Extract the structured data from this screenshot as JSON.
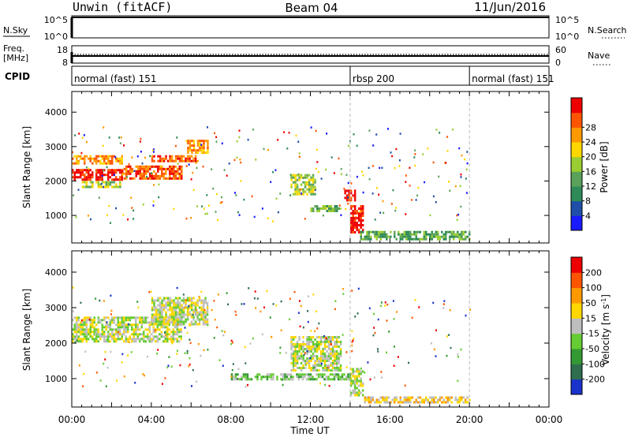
{
  "header": {
    "left": "Unwin (fitACF)",
    "center": "Beam 04",
    "right": "11/Jun/2016"
  },
  "nsky": {
    "label": "N.Sky",
    "left_ticks": [
      "10^5",
      "10^0"
    ],
    "right_ticks": [
      "10^5",
      "10^0"
    ],
    "right_label": "N.Search"
  },
  "freq": {
    "label_line1": "Freq.",
    "label_line2": "[MHz]",
    "left_ticks": [
      "18",
      "8"
    ],
    "right_ticks": [
      "60",
      "0"
    ],
    "right_label": "Nave"
  },
  "cpid": {
    "label": "CPID",
    "segments": [
      {
        "start_hour": 0,
        "end_hour": 14.0,
        "label": "normal (fast) 151"
      },
      {
        "start_hour": 14.0,
        "end_hour": 20.0,
        "label": "rbsp 200"
      },
      {
        "start_hour": 20.0,
        "end_hour": 24,
        "label": "normal (fast) 151"
      }
    ]
  },
  "chart_data": [
    {
      "type": "heatmap",
      "name": "power",
      "ylabel": "Slant Range [km]",
      "yticks": [
        "1000",
        "2000",
        "3000",
        "4000"
      ],
      "ylim": [
        200,
        4600
      ],
      "colorbar": {
        "label": "Power [dB]",
        "ticks": [
          "4",
          "8",
          "12",
          "16",
          "20",
          "24",
          "28"
        ],
        "colors": [
          "#1a1aff",
          "#1f4fa8",
          "#2e8b57",
          "#5aa25a",
          "#9acd32",
          "#ffd700",
          "#ff9900",
          "#ff5500",
          "#ee0000"
        ]
      },
      "bands": [
        {
          "t0": 0.0,
          "t1": 2.5,
          "r0": 2050,
          "r1": 2350,
          "level": 8
        },
        {
          "t0": 0.0,
          "t1": 2.5,
          "r0": 2500,
          "r1": 2750,
          "level": 6
        },
        {
          "t0": 2.5,
          "t1": 5.5,
          "r0": 2100,
          "r1": 2450,
          "level": 7
        },
        {
          "t0": 4.0,
          "t1": 6.3,
          "r0": 2550,
          "r1": 2750,
          "level": 7
        },
        {
          "t0": 5.8,
          "t1": 6.8,
          "r0": 2800,
          "r1": 3200,
          "level": 6
        },
        {
          "t0": 0.5,
          "t1": 2.5,
          "r0": 1850,
          "r1": 2000,
          "level": 4
        },
        {
          "t0": 13.7,
          "t1": 14.2,
          "r0": 1450,
          "r1": 1750,
          "level": 8
        },
        {
          "t0": 14.0,
          "t1": 14.6,
          "r0": 500,
          "r1": 1300,
          "level": 8
        },
        {
          "t0": 14.5,
          "t1": 20.0,
          "r0": 300,
          "r1": 550,
          "level": 3
        },
        {
          "t0": 11.0,
          "t1": 12.2,
          "r0": 1600,
          "r1": 2200,
          "level": 4
        },
        {
          "t0": 12.0,
          "t1": 13.5,
          "r0": 1100,
          "r1": 1300,
          "level": 3
        }
      ]
    },
    {
      "type": "heatmap",
      "name": "velocity",
      "ylabel": "Slant Range [km]",
      "yticks": [
        "1000",
        "2000",
        "3000",
        "4000"
      ],
      "ylim": [
        200,
        4600
      ],
      "colorbar": {
        "label": "Velocity [m s^-1]",
        "ticks": [
          "200",
          "100",
          "50",
          "15",
          "-15",
          "-50",
          "-100",
          "-200"
        ],
        "colors": [
          "#1a33cc",
          "#2e6e4e",
          "#339933",
          "#66cc33",
          "#bebebe",
          "#ffd700",
          "#ff9900",
          "#ff5500",
          "#ee0000"
        ]
      },
      "bands": [
        {
          "t0": 0.0,
          "t1": 5.5,
          "r0": 2050,
          "r1": 2750,
          "level": 4
        },
        {
          "t0": 4.0,
          "t1": 6.8,
          "r0": 2550,
          "r1": 3300,
          "level": 4
        },
        {
          "t0": 11.0,
          "t1": 13.5,
          "r0": 1200,
          "r1": 2200,
          "level": 4
        },
        {
          "t0": 14.0,
          "t1": 14.6,
          "r0": 500,
          "r1": 1300,
          "level": 4
        },
        {
          "t0": 8.0,
          "t1": 14.0,
          "r0": 1000,
          "r1": 1150,
          "level": 3
        },
        {
          "t0": 14.6,
          "t1": 20.0,
          "r0": 300,
          "r1": 500,
          "level": 5
        }
      ]
    }
  ],
  "xaxis": {
    "ticks": [
      "00:00",
      "04:00",
      "08:00",
      "12:00",
      "16:00",
      "20:00",
      "00:00"
    ],
    "label": "Time UT",
    "range_hours": [
      0,
      24
    ]
  }
}
